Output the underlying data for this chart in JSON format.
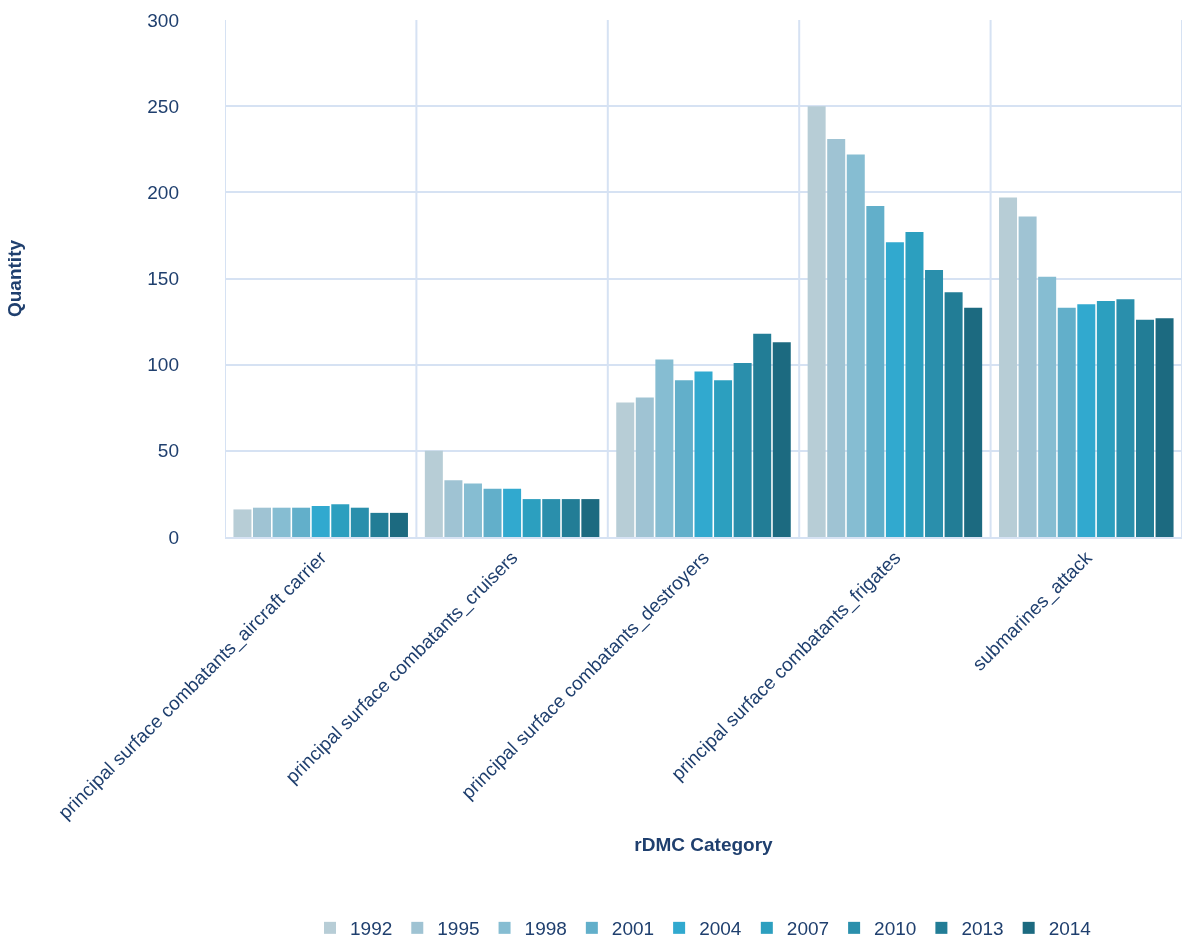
{
  "chart_data": {
    "type": "bar",
    "xlabel": "rDMC Category",
    "ylabel": "Quantity",
    "categories": [
      "principal surface combatants_aircraft carrier",
      "principal surface combatants_cruisers",
      "principal surface combatants_destroyers",
      "principal surface combatants_frigates",
      "submarines_attack"
    ],
    "series": [
      {
        "name": "1992",
        "color": "#b7cdd6",
        "values": [
          16,
          50,
          78,
          250,
          197
        ]
      },
      {
        "name": "1995",
        "color": "#9fc3d3",
        "values": [
          17,
          33,
          81,
          231,
          186
        ]
      },
      {
        "name": "1998",
        "color": "#86bdd2",
        "values": [
          17,
          31,
          103,
          222,
          151
        ]
      },
      {
        "name": "2001",
        "color": "#62afca",
        "values": [
          17,
          28,
          91,
          192,
          133
        ]
      },
      {
        "name": "2004",
        "color": "#31a9cf",
        "values": [
          18,
          28,
          96,
          171,
          135
        ]
      },
      {
        "name": "2007",
        "color": "#2c9fbf",
        "values": [
          19,
          22,
          91,
          177,
          137
        ]
      },
      {
        "name": "2010",
        "color": "#2a8fac",
        "values": [
          17,
          22,
          101,
          155,
          138
        ]
      },
      {
        "name": "2013",
        "color": "#227d96",
        "values": [
          14,
          22,
          118,
          142,
          126
        ]
      },
      {
        "name": "2014",
        "color": "#1c6a80",
        "values": [
          14,
          22,
          113,
          133,
          127
        ]
      }
    ],
    "ylim": [
      0,
      300
    ],
    "yticks": [
      0,
      50,
      100,
      150,
      200,
      250,
      300
    ],
    "grid": true,
    "legend": "bottom"
  }
}
